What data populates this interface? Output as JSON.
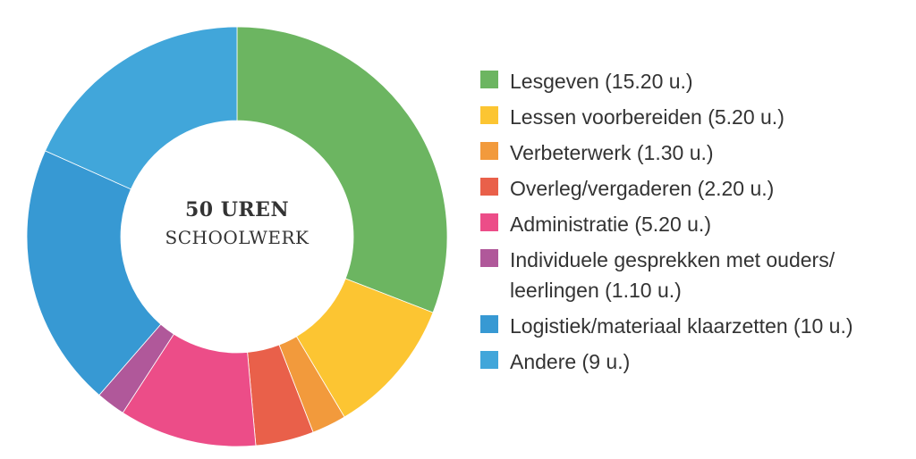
{
  "chart_data": {
    "type": "pie",
    "donut": true,
    "center_value": "50 UREN",
    "center_label": "SCHOOLWERK",
    "legend_position": "right",
    "slices": [
      {
        "label": "Lesgeven (15.20 u.)",
        "value": 15.2,
        "color": "#6cb561"
      },
      {
        "label": "Lessen voorbereiden (5.20 u.)",
        "value": 5.2,
        "color": "#fcc532"
      },
      {
        "label": "Verbeterwerk (1.30 u.)",
        "value": 1.3,
        "color": "#f29a3c"
      },
      {
        "label": "Overleg/vergaderen (2.20 u.)",
        "value": 2.2,
        "color": "#e9604a"
      },
      {
        "label": "Administratie (5.20 u.)",
        "value": 5.2,
        "color": "#ec4d88"
      },
      {
        "label": "Individuele gesprekken met ouders/ leerlingen (1.10 u.)",
        "value": 1.1,
        "color": "#b0589a"
      },
      {
        "label": "Logistiek/materiaal klaarzetten (10 u.)",
        "value": 10,
        "color": "#3799d3"
      },
      {
        "label": "Andere (9 u.)",
        "value": 9,
        "color": "#41a6da"
      }
    ]
  }
}
